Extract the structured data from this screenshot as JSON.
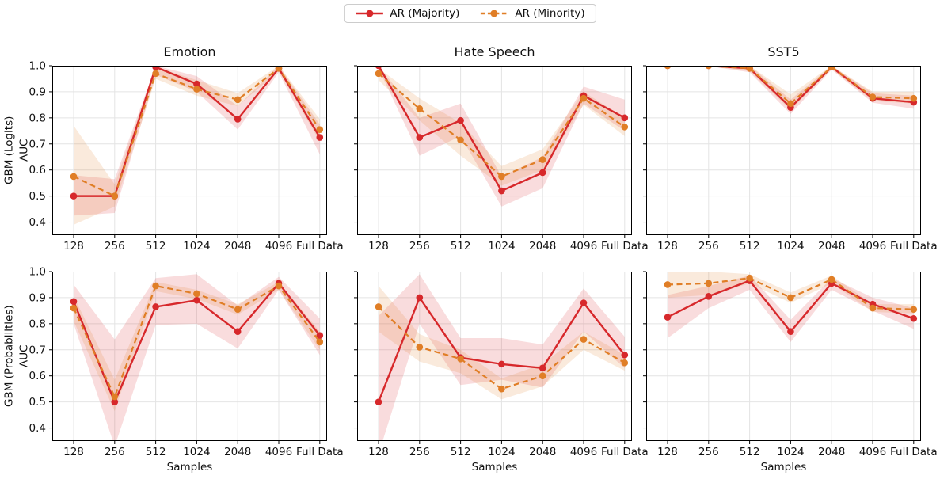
{
  "legend": {
    "items": [
      {
        "label": "AR (Majority)",
        "color": "#d7282b",
        "line_style": "solid",
        "marker": "circle"
      },
      {
        "label": "AR (Minority)",
        "color": "#e07e26",
        "line_style": "dashed",
        "marker": "circle"
      }
    ],
    "position": "top-center"
  },
  "axes": {
    "col_titles": [
      "Emotion",
      "Hate Speech",
      "SST5"
    ],
    "row_labels": [
      "GBM (Logits)",
      "GBM (Probabilities)"
    ],
    "ylabel_inner": "AUC",
    "xlabel": "Samples",
    "x_categories": [
      "128",
      "256",
      "512",
      "1024",
      "2048",
      "4096",
      "Full Data"
    ],
    "y_ticks": [
      "1.0",
      "0.9",
      "0.8",
      "0.7",
      "0.6",
      "0.5",
      "0.4"
    ],
    "ylim": [
      0.35,
      1.0
    ],
    "grid": true,
    "band_opacity": 0.16
  },
  "chart_data": [
    {
      "type": "line",
      "title": "Emotion",
      "row_label": "GBM (Logits)",
      "ylabel": "AUC",
      "xlabel": "",
      "x": [
        "128",
        "256",
        "512",
        "1024",
        "2048",
        "4096",
        "Full Data"
      ],
      "ylim": [
        0.35,
        1.0
      ],
      "series": [
        {
          "name": "AR (Majority)",
          "color": "#d7282b",
          "dashed": false,
          "values": [
            0.5,
            0.5,
            0.995,
            0.93,
            0.795,
            0.99,
            0.725
          ],
          "band_lo": [
            0.425,
            0.435,
            0.965,
            0.9,
            0.755,
            0.975,
            0.66
          ],
          "band_hi": [
            0.58,
            0.565,
            1.0,
            0.96,
            0.845,
            1.0,
            0.775
          ]
        },
        {
          "name": "AR (Minority)",
          "color": "#e07e26",
          "dashed": true,
          "values": [
            0.575,
            0.5,
            0.97,
            0.91,
            0.87,
            0.99,
            0.755
          ],
          "band_lo": [
            0.39,
            0.46,
            0.95,
            0.885,
            0.845,
            0.98,
            0.71
          ],
          "band_hi": [
            0.77,
            0.545,
            0.995,
            0.945,
            0.895,
            1.0,
            0.795
          ]
        }
      ]
    },
    {
      "type": "line",
      "title": "Hate Speech",
      "row_label": "GBM (Logits)",
      "ylabel": "AUC",
      "xlabel": "",
      "x": [
        "128",
        "256",
        "512",
        "1024",
        "2048",
        "4096",
        "Full Data"
      ],
      "ylim": [
        0.35,
        1.0
      ],
      "series": [
        {
          "name": "AR (Majority)",
          "color": "#d7282b",
          "dashed": false,
          "values": [
            1.0,
            0.725,
            0.79,
            0.52,
            0.59,
            0.885,
            0.8
          ],
          "band_lo": [
            0.99,
            0.655,
            0.73,
            0.46,
            0.53,
            0.855,
            0.75
          ],
          "band_hi": [
            1.0,
            0.8,
            0.855,
            0.575,
            0.65,
            0.92,
            0.87
          ]
        },
        {
          "name": "AR (Minority)",
          "color": "#e07e26",
          "dashed": true,
          "values": [
            0.97,
            0.835,
            0.715,
            0.575,
            0.64,
            0.875,
            0.765
          ],
          "band_lo": [
            0.945,
            0.79,
            0.655,
            0.54,
            0.6,
            0.85,
            0.73
          ],
          "band_hi": [
            0.99,
            0.875,
            0.78,
            0.615,
            0.68,
            0.9,
            0.8
          ]
        }
      ]
    },
    {
      "type": "line",
      "title": "SST5",
      "row_label": "GBM (Logits)",
      "ylabel": "AUC",
      "xlabel": "",
      "x": [
        "128",
        "256",
        "512",
        "1024",
        "2048",
        "4096",
        "Full Data"
      ],
      "ylim": [
        0.35,
        1.0
      ],
      "series": [
        {
          "name": "AR (Majority)",
          "color": "#d7282b",
          "dashed": false,
          "values": [
            1.0,
            1.0,
            0.99,
            0.84,
            0.995,
            0.875,
            0.86
          ],
          "band_lo": [
            1.0,
            0.998,
            0.975,
            0.815,
            0.985,
            0.858,
            0.835
          ],
          "band_hi": [
            1.0,
            1.0,
            1.0,
            0.87,
            1.0,
            0.895,
            0.885
          ]
        },
        {
          "name": "AR (Minority)",
          "color": "#e07e26",
          "dashed": true,
          "values": [
            1.0,
            1.0,
            0.99,
            0.855,
            0.995,
            0.88,
            0.875
          ],
          "band_lo": [
            1.0,
            0.998,
            0.98,
            0.83,
            0.988,
            0.865,
            0.855
          ],
          "band_hi": [
            1.0,
            1.0,
            1.0,
            0.89,
            1.0,
            0.9,
            0.9
          ]
        }
      ]
    },
    {
      "type": "line",
      "title": "Emotion",
      "row_label": "GBM (Probabilities)",
      "ylabel": "AUC",
      "xlabel": "Samples",
      "x": [
        "128",
        "256",
        "512",
        "1024",
        "2048",
        "4096",
        "Full Data"
      ],
      "ylim": [
        0.35,
        1.0
      ],
      "series": [
        {
          "name": "AR (Majority)",
          "color": "#d7282b",
          "dashed": false,
          "values": [
            0.885,
            0.5,
            0.865,
            0.89,
            0.77,
            0.955,
            0.755
          ],
          "band_lo": [
            0.8,
            0.33,
            0.795,
            0.8,
            0.705,
            0.93,
            0.68
          ],
          "band_hi": [
            0.95,
            0.74,
            0.975,
            0.99,
            0.87,
            0.98,
            0.82
          ]
        },
        {
          "name": "AR (Minority)",
          "color": "#e07e26",
          "dashed": true,
          "values": [
            0.86,
            0.52,
            0.945,
            0.915,
            0.855,
            0.945,
            0.73
          ],
          "band_lo": [
            0.81,
            0.465,
            0.925,
            0.895,
            0.835,
            0.93,
            0.7
          ],
          "band_hi": [
            0.905,
            0.585,
            0.96,
            0.93,
            0.875,
            0.96,
            0.77
          ]
        }
      ]
    },
    {
      "type": "line",
      "title": "Hate Speech",
      "row_label": "GBM (Probabilities)",
      "ylabel": "AUC",
      "xlabel": "Samples",
      "x": [
        "128",
        "256",
        "512",
        "1024",
        "2048",
        "4096",
        "Full Data"
      ],
      "ylim": [
        0.35,
        1.0
      ],
      "series": [
        {
          "name": "AR (Majority)",
          "color": "#d7282b",
          "dashed": false,
          "values": [
            0.5,
            0.9,
            0.67,
            0.645,
            0.63,
            0.88,
            0.68
          ],
          "band_lo": [
            0.3,
            0.8,
            0.565,
            0.585,
            0.555,
            0.77,
            0.63
          ],
          "band_hi": [
            0.83,
            0.99,
            0.745,
            0.745,
            0.72,
            0.935,
            0.75
          ]
        },
        {
          "name": "AR (Minority)",
          "color": "#e07e26",
          "dashed": true,
          "values": [
            0.865,
            0.71,
            0.665,
            0.55,
            0.6,
            0.74,
            0.65
          ],
          "band_lo": [
            0.77,
            0.655,
            0.61,
            0.51,
            0.56,
            0.7,
            0.62
          ],
          "band_hi": [
            0.945,
            0.76,
            0.7,
            0.59,
            0.645,
            0.77,
            0.68
          ]
        }
      ]
    },
    {
      "type": "line",
      "title": "SST5",
      "row_label": "GBM (Probabilities)",
      "ylabel": "AUC",
      "xlabel": "Samples",
      "x": [
        "128",
        "256",
        "512",
        "1024",
        "2048",
        "4096",
        "Full Data"
      ],
      "ylim": [
        0.35,
        1.0
      ],
      "series": [
        {
          "name": "AR (Majority)",
          "color": "#d7282b",
          "dashed": false,
          "values": [
            0.825,
            0.905,
            0.965,
            0.77,
            0.955,
            0.875,
            0.82
          ],
          "band_lo": [
            0.745,
            0.86,
            0.93,
            0.73,
            0.93,
            0.85,
            0.78
          ],
          "band_hi": [
            0.91,
            0.945,
            0.985,
            0.815,
            0.975,
            0.9,
            0.86
          ]
        },
        {
          "name": "AR (Minority)",
          "color": "#e07e26",
          "dashed": true,
          "values": [
            0.95,
            0.955,
            0.975,
            0.9,
            0.97,
            0.86,
            0.855
          ],
          "band_lo": [
            0.9,
            0.91,
            0.955,
            0.88,
            0.955,
            0.845,
            0.84
          ],
          "band_hi": [
            1.0,
            1.0,
            0.99,
            0.92,
            0.985,
            0.875,
            0.875
          ]
        }
      ]
    }
  ]
}
